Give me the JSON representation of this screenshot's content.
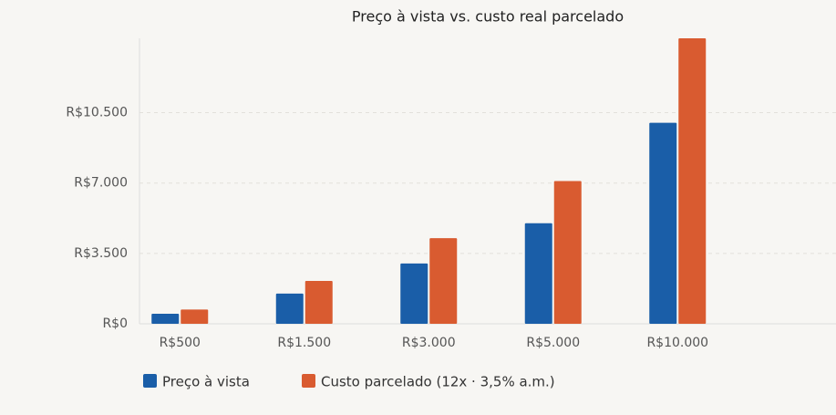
{
  "chart_data": {
    "type": "bar",
    "title": "Preço à vista vs. custo real parcelado",
    "categories": [
      "R$500",
      "R$1.500",
      "R$3.000",
      "R$5.000",
      "R$10.000"
    ],
    "series": [
      {
        "name": "Preço à vista",
        "color": "#1a5ea8",
        "values": [
          500,
          1500,
          3000,
          5000,
          10000
        ]
      },
      {
        "name": "Custo parcelado (12x · 3,5% a.m.)",
        "color": "#d95b30",
        "values": [
          710,
          2130,
          4260,
          7100,
          14200
        ]
      }
    ],
    "ylim": [
      0,
      14200
    ],
    "yticks": [
      {
        "value": 0,
        "label": "R$0"
      },
      {
        "value": 3500,
        "label": "R$3.500"
      },
      {
        "value": 7000,
        "label": "R$7.000"
      },
      {
        "value": 10500,
        "label": "R$10.500"
      }
    ],
    "grid": true
  }
}
